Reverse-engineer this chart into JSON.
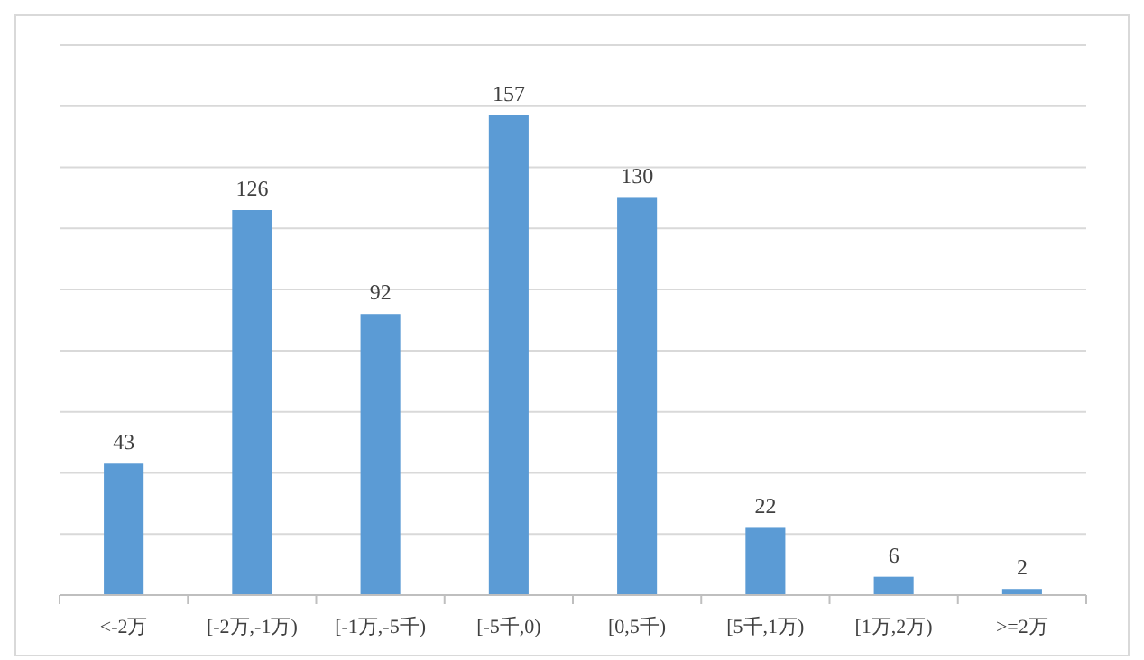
{
  "chart_data": {
    "type": "bar",
    "categories": [
      "<-2万",
      "[-2万,-1万)",
      "[-1万,-5千)",
      "[-5千,0)",
      "[0,5千)",
      "[5千,1万)",
      "[1万,2万)",
      ">=2万"
    ],
    "values": [
      43,
      126,
      92,
      157,
      130,
      22,
      6,
      2
    ],
    "color": "#5b9bd5",
    "data_labels": true,
    "ylim": [
      0,
      180
    ],
    "yticks": [
      {
        "value": 0,
        "label": null
      },
      {
        "value": 20,
        "label": null
      },
      {
        "value": 40,
        "label": null
      },
      {
        "value": 60,
        "label": null
      },
      {
        "value": 80,
        "label": null
      },
      {
        "value": 100,
        "label": null
      },
      {
        "value": 120,
        "label": null
      },
      {
        "value": 140,
        "label": null
      },
      {
        "value": 160,
        "label": null
      },
      {
        "value": 180,
        "label": null
      }
    ],
    "grid": "y",
    "tick_labels": "x"
  }
}
